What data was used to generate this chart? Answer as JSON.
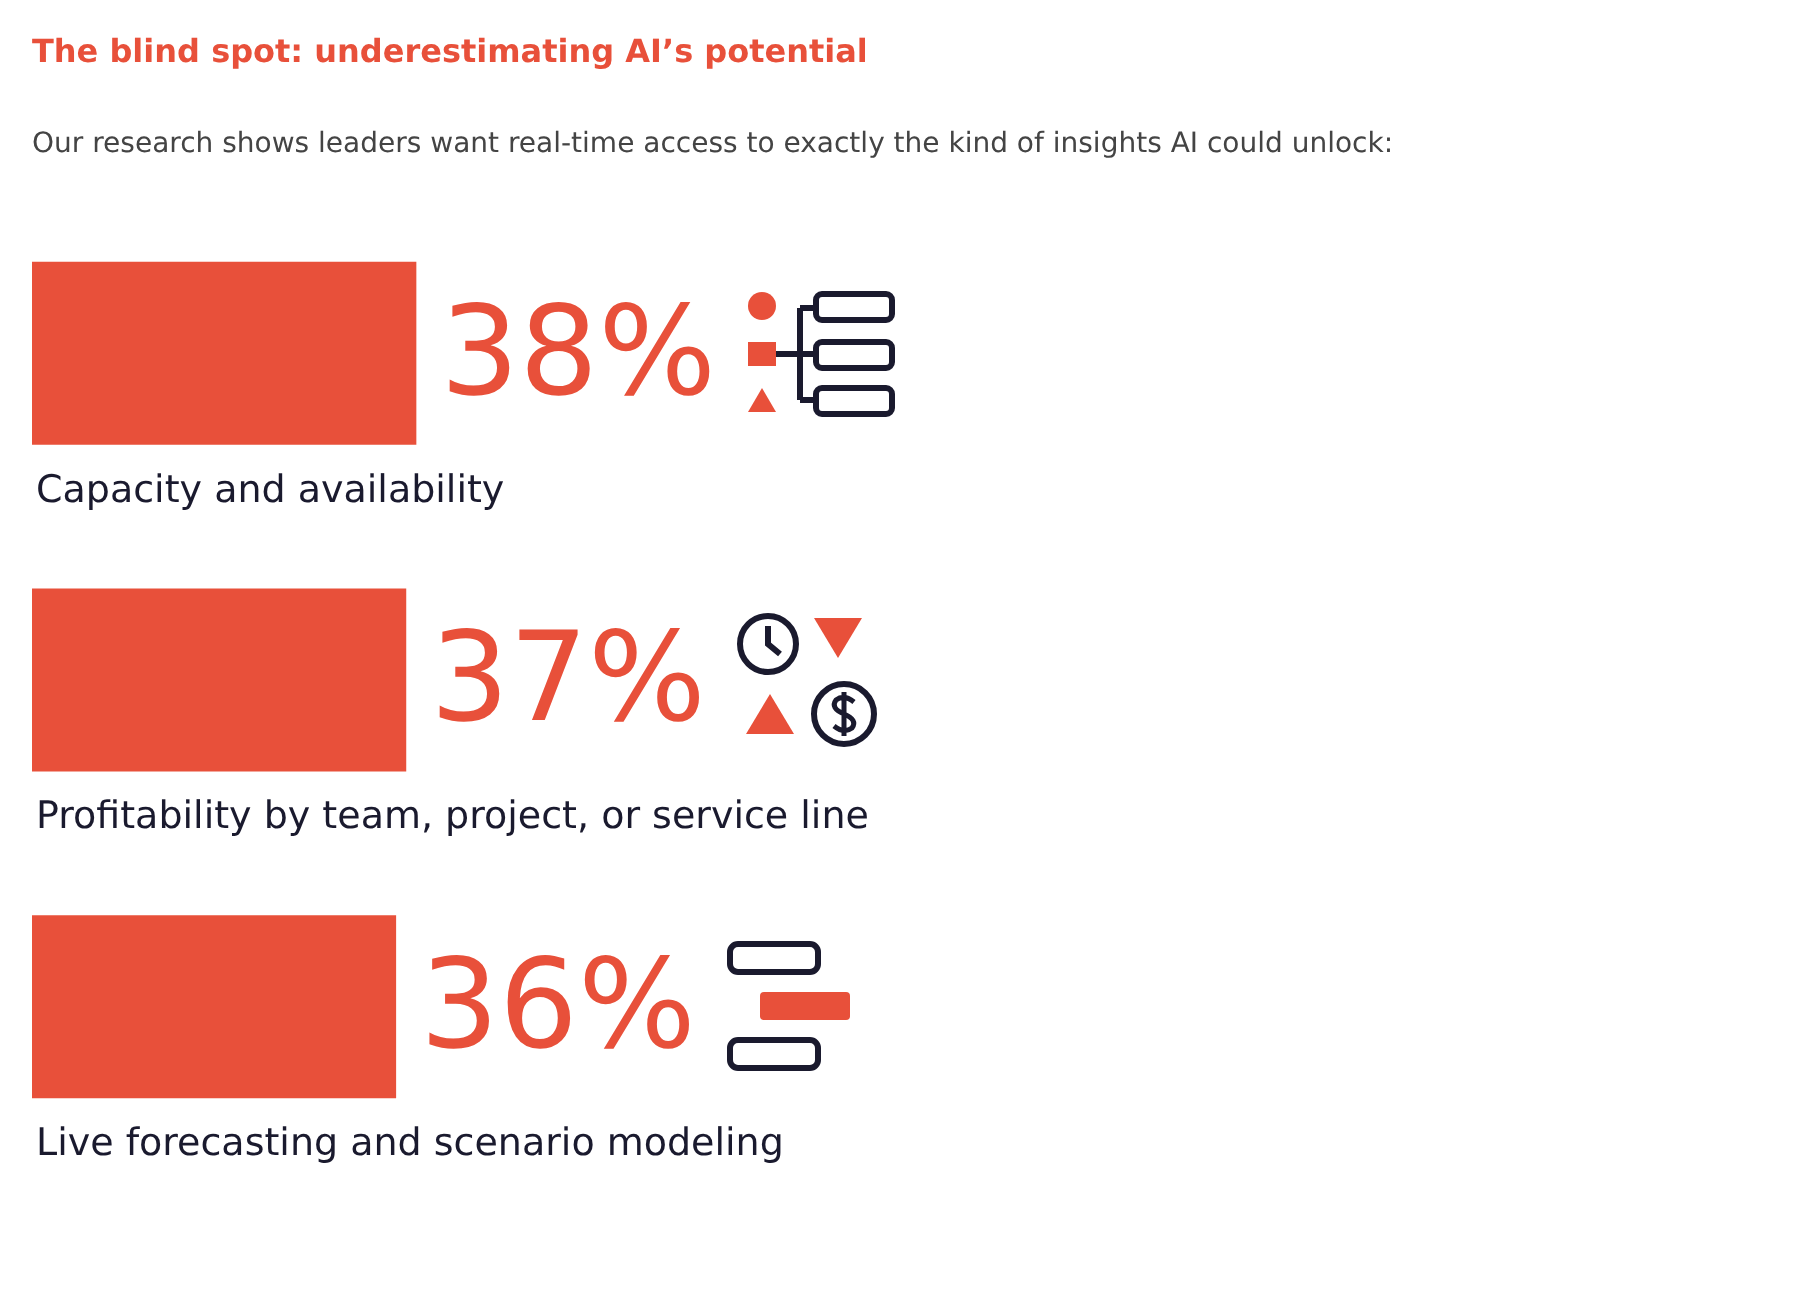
{
  "chart_data": {
    "type": "bar",
    "orientation": "horizontal",
    "title": "The blind spot: underestimating AI’s potential",
    "subtitle": "Our research shows leaders want real-time access to exactly the kind of insights AI could unlock:",
    "categories": [
      "Capacity and availability",
      "Profitability by team, project, or service line",
      "Live forecasting and scenario modeling"
    ],
    "values": [
      38,
      37,
      36
    ],
    "value_labels": [
      "38%",
      "37%",
      "36%"
    ],
    "color": "#e8503a",
    "legend": false,
    "tick_labels": false
  }
}
